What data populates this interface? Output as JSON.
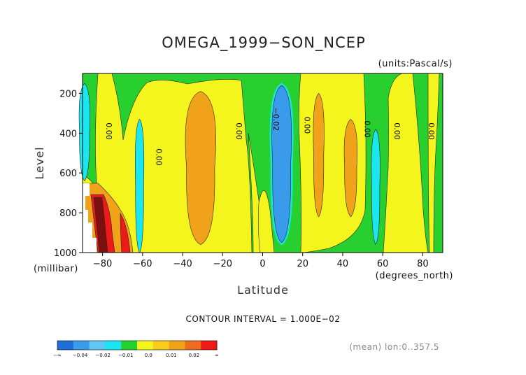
{
  "chart_data": {
    "type": "heatmap",
    "title": "OMEGA_1999−SON_NCEP",
    "units_label": "(units:Pascal/s)",
    "xlabel": "Latitude",
    "ylabel": "Level",
    "x_unit_label": "(degrees_north)",
    "y_unit_label": "(millibar)",
    "xlim": [
      -90,
      90
    ],
    "ylim": [
      1000,
      100
    ],
    "x_ticks": [
      -80,
      -60,
      -40,
      -20,
      0,
      20,
      40,
      60,
      80
    ],
    "x_tick_labels": [
      "−80",
      "−60",
      "−40",
      "−20",
      "0",
      "20",
      "40",
      "60",
      "80"
    ],
    "y_ticks": [
      200,
      400,
      600,
      800,
      1000
    ],
    "y_tick_labels": [
      "200",
      "400",
      "600",
      "800",
      "1000"
    ],
    "contour_interval_text": "CONTOUR INTERVAL = 1.000E−02",
    "footer_text": "(mean) lon:0..357.5",
    "contour_labels": [
      "0.00",
      "0.00",
      "0.00",
      "−0.02",
      "0.00",
      "0.00",
      "0.00",
      "0.00"
    ],
    "colorbar": {
      "colors": [
        "#1e6fd8",
        "#3a9bea",
        "#5ec7f2",
        "#19e6f0",
        "#27d02f",
        "#f5f51e",
        "#f9cc1e",
        "#f0a21a",
        "#ea6e1e",
        "#ee1a1a"
      ],
      "tick_labels": [
        "−∞",
        "−0.04",
        "−0.02",
        "−0.01",
        "0.0",
        "0.01",
        "0.02",
        "∞"
      ]
    },
    "levels": [
      -0.04,
      -0.03,
      -0.02,
      -0.01,
      0.0,
      0.01,
      0.02
    ],
    "features": [
      {
        "kind": "column",
        "center_lat": -31,
        "half_width": 7,
        "top": 190,
        "bottom": 960,
        "value": 0.015
      },
      {
        "kind": "column",
        "center_lat": 9.5,
        "half_width": 4.5,
        "top": 160,
        "bottom": 950,
        "value": -0.025
      },
      {
        "kind": "column",
        "center_lat": 28,
        "half_width": 2.5,
        "top": 200,
        "bottom": 820,
        "value": 0.015
      },
      {
        "kind": "column",
        "center_lat": 44,
        "half_width": 3,
        "top": 330,
        "bottom": 820,
        "value": 0.015
      },
      {
        "kind": "column",
        "center_lat": -61.5,
        "half_width": 2,
        "top": 330,
        "bottom": 1000,
        "value": -0.015
      },
      {
        "kind": "column",
        "center_lat": 56.5,
        "half_width": 2,
        "top": 380,
        "bottom": 960,
        "value": -0.015
      },
      {
        "kind": "column",
        "center_lat": -89,
        "half_width": 2.5,
        "top": 150,
        "bottom": 640,
        "value": -0.015
      }
    ]
  }
}
